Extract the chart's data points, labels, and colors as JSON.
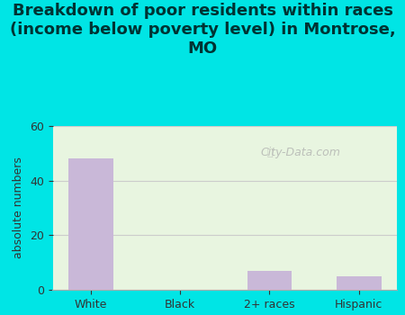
{
  "categories": [
    "White",
    "Black",
    "2+ races",
    "Hispanic"
  ],
  "values": [
    48,
    0,
    7,
    5
  ],
  "bar_color": "#c9b8d8",
  "title": "Breakdown of poor residents within races\n(income below poverty level) in Montrose,\nMO",
  "ylabel": "absolute numbers",
  "ylim": [
    0,
    60
  ],
  "yticks": [
    0,
    20,
    40,
    60
  ],
  "title_fontsize": 13,
  "axis_label_fontsize": 9,
  "tick_fontsize": 9,
  "background_color_title": "#00e5e5",
  "background_color_plot": "#e8f5e0",
  "watermark": "City-Data.com"
}
